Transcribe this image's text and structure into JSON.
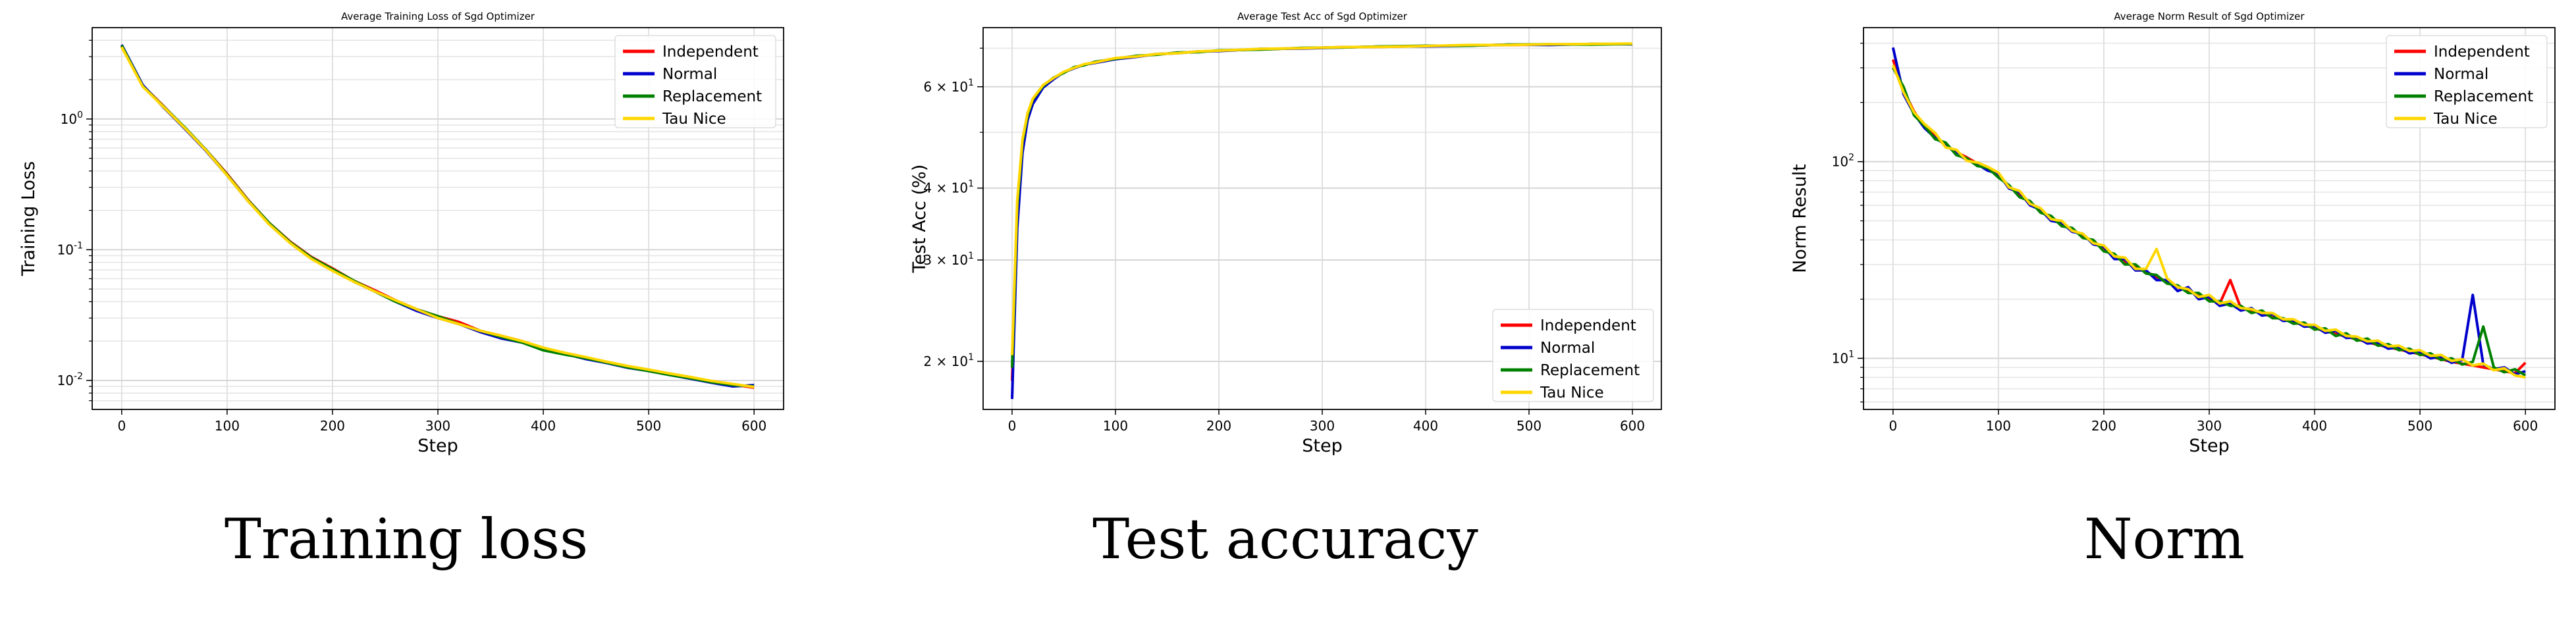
{
  "chart_data": [
    {
      "type": "line",
      "title": "Average Training Loss of Sgd Optimizer",
      "xlabel": "Step",
      "ylabel": "Training Loss",
      "yscale": "log",
      "xlim": [
        -28,
        628
      ],
      "ylim": [
        0.006,
        5.0
      ],
      "x_ticks": [
        0,
        100,
        200,
        300,
        400,
        500,
        600
      ],
      "y_ticks": [
        {
          "value": 1,
          "label": "10^0"
        },
        {
          "value": 0.1,
          "label": "10^-1"
        },
        {
          "value": 0.01,
          "label": "10^-2"
        }
      ],
      "grid": true,
      "legend_position": "top-right",
      "x": [
        0,
        20,
        40,
        60,
        80,
        100,
        120,
        140,
        160,
        180,
        200,
        220,
        240,
        260,
        280,
        300,
        320,
        340,
        360,
        380,
        400,
        420,
        440,
        460,
        480,
        500,
        520,
        540,
        560,
        580,
        600
      ],
      "series": [
        {
          "name": "Independent",
          "color": "#ff0000",
          "values": [
            3.6,
            1.8,
            1.25,
            0.85,
            0.58,
            0.38,
            0.24,
            0.16,
            0.115,
            0.088,
            0.072,
            0.058,
            0.049,
            0.041,
            0.035,
            0.031,
            0.028,
            0.024,
            0.022,
            0.02,
            0.0175,
            0.0162,
            0.015,
            0.0138,
            0.0128,
            0.012,
            0.0112,
            0.0105,
            0.0098,
            0.0093,
            0.0088
          ]
        },
        {
          "name": "Normal",
          "color": "#0000cc",
          "values": [
            3.7,
            1.82,
            1.22,
            0.84,
            0.57,
            0.37,
            0.235,
            0.158,
            0.113,
            0.087,
            0.07,
            0.057,
            0.048,
            0.04,
            0.034,
            0.03,
            0.027,
            0.0235,
            0.021,
            0.0195,
            0.0172,
            0.016,
            0.0146,
            0.0136,
            0.0125,
            0.0118,
            0.011,
            0.0103,
            0.0096,
            0.009,
            0.0092
          ]
        },
        {
          "name": "Replacement",
          "color": "#008000",
          "values": [
            3.65,
            1.78,
            1.24,
            0.86,
            0.58,
            0.375,
            0.238,
            0.16,
            0.114,
            0.087,
            0.071,
            0.058,
            0.048,
            0.04,
            0.035,
            0.031,
            0.027,
            0.024,
            0.0215,
            0.0195,
            0.017,
            0.0158,
            0.0148,
            0.0137,
            0.0126,
            0.0118,
            0.011,
            0.0104,
            0.0097,
            0.0092,
            0.009
          ]
        },
        {
          "name": "Tau Nice",
          "color": "#ffd700",
          "values": [
            3.55,
            1.77,
            1.23,
            0.85,
            0.575,
            0.37,
            0.235,
            0.156,
            0.112,
            0.085,
            0.069,
            0.057,
            0.048,
            0.041,
            0.035,
            0.03,
            0.027,
            0.024,
            0.022,
            0.02,
            0.0178,
            0.0163,
            0.0151,
            0.0139,
            0.0129,
            0.0121,
            0.0113,
            0.0106,
            0.0099,
            0.0094,
            0.0089
          ]
        }
      ]
    },
    {
      "type": "line",
      "title": "Average Test Acc of Sgd Optimizer",
      "xlabel": "Step",
      "ylabel": "Test Acc (%)",
      "yscale": "log",
      "xlim": [
        -28,
        628
      ],
      "ylim": [
        16.5,
        76
      ],
      "x_ticks": [
        0,
        100,
        200,
        300,
        400,
        500,
        600
      ],
      "y_ticks": [
        {
          "value": 20,
          "label": "2 × 10^1"
        },
        {
          "value": 30,
          "label": "3 × 10^1"
        },
        {
          "value": 40,
          "label": "4 × 10^1"
        },
        {
          "value": 60,
          "label": "6 × 10^1"
        }
      ],
      "grid": true,
      "legend_position": "bottom-right",
      "x": [
        0,
        5,
        10,
        15,
        20,
        30,
        40,
        50,
        60,
        70,
        80,
        100,
        120,
        140,
        160,
        180,
        200,
        240,
        280,
        320,
        360,
        400,
        440,
        480,
        520,
        560,
        600
      ],
      "series": [
        {
          "name": "Independent",
          "color": "#ff0000",
          "values": [
            18.5,
            36,
            47,
            53,
            56.5,
            60,
            62,
            63.5,
            64.8,
            65.5,
            66.2,
            67.2,
            67.8,
            68.3,
            68.7,
            69,
            69.3,
            69.7,
            70,
            70.3,
            70.4,
            70.6,
            70.8,
            70.9,
            71,
            71.1,
            71.2
          ]
        },
        {
          "name": "Normal",
          "color": "#0000cc",
          "values": [
            17.2,
            34,
            46,
            52.5,
            56,
            59.8,
            61.8,
            63.6,
            64.6,
            65.6,
            66.0,
            67.0,
            67.6,
            68.4,
            68.6,
            69.1,
            69.2,
            69.8,
            69.9,
            70.2,
            70.5,
            70.5,
            70.7,
            71.0,
            70.9,
            71.2,
            71.1
          ]
        },
        {
          "name": "Replacement",
          "color": "#008000",
          "values": [
            19.5,
            37,
            48,
            53.5,
            57,
            60.2,
            62.2,
            63.4,
            64.9,
            65.4,
            66.3,
            67.1,
            67.9,
            68.2,
            68.8,
            68.9,
            69.4,
            69.6,
            70.1,
            70.2,
            70.5,
            70.7,
            70.7,
            71.0,
            71.1,
            71.0,
            71.2
          ]
        },
        {
          "name": "Tau Nice",
          "color": "#ffd700",
          "values": [
            20.5,
            38,
            48.5,
            54,
            57.2,
            60.4,
            62.1,
            63.7,
            64.7,
            65.7,
            66.1,
            67.3,
            67.7,
            68.4,
            68.6,
            69.1,
            69.3,
            69.8,
            70.0,
            70.3,
            70.4,
            70.6,
            70.9,
            70.9,
            71.1,
            71.2,
            71.3
          ]
        }
      ]
    },
    {
      "type": "line",
      "title": "Average Norm Result of Sgd Optimizer",
      "xlabel": "Step",
      "ylabel": "Norm Result",
      "yscale": "log",
      "xlim": [
        -28,
        628
      ],
      "ylim": [
        5.5,
        480
      ],
      "x_ticks": [
        0,
        100,
        200,
        300,
        400,
        500,
        600
      ],
      "y_ticks": [
        {
          "value": 100,
          "label": "10^2"
        },
        {
          "value": 10,
          "label": "10^1"
        }
      ],
      "grid": true,
      "legend_position": "top-right",
      "x": [
        0,
        10,
        20,
        30,
        40,
        50,
        60,
        70,
        80,
        90,
        100,
        110,
        120,
        130,
        140,
        150,
        160,
        170,
        180,
        190,
        200,
        210,
        220,
        230,
        240,
        250,
        260,
        270,
        280,
        290,
        300,
        310,
        320,
        330,
        340,
        350,
        360,
        370,
        380,
        390,
        400,
        410,
        420,
        430,
        440,
        450,
        460,
        470,
        480,
        490,
        500,
        510,
        520,
        530,
        540,
        550,
        560,
        570,
        580,
        590,
        600
      ],
      "series": [
        {
          "name": "Independent",
          "color": "#ff0000",
          "values": [
            330,
            230,
            180,
            150,
            135,
            120,
            112,
            105,
            98,
            92,
            85,
            75,
            68,
            62,
            56,
            52,
            48,
            45,
            42,
            39,
            36,
            33,
            31,
            29,
            27.5,
            26,
            24.5,
            23,
            22,
            21,
            20,
            19,
            25,
            18,
            17.5,
            17,
            16.2,
            15.8,
            15.2,
            14.8,
            14.2,
            13.8,
            13.3,
            12.9,
            12.5,
            12.1,
            11.7,
            11.4,
            11.1,
            10.8,
            10.5,
            10.2,
            9.9,
            9.6,
            9.4,
            9.2,
            9.0,
            8.8,
            8.6,
            8.4,
            9.5
          ]
        },
        {
          "name": "Normal",
          "color": "#0000cc",
          "values": [
            380,
            220,
            175,
            148,
            132,
            122,
            110,
            102,
            97,
            90,
            87,
            73,
            70,
            60,
            57,
            50,
            49,
            44,
            43,
            38,
            37,
            32,
            32,
            28,
            28,
            25,
            25,
            22,
            23,
            20,
            20.5,
            18.5,
            19,
            17.5,
            18,
            16.5,
            16.8,
            15.5,
            15.6,
            14.5,
            14.6,
            13.5,
            13.8,
            12.7,
            12.8,
            11.9,
            12.0,
            11.2,
            11.4,
            10.6,
            10.8,
            10.0,
            10.2,
            9.5,
            9.8,
            21,
            9.3,
            8.8,
            9.0,
            8.3,
            8.6
          ]
        },
        {
          "name": "Replacement",
          "color": "#008000",
          "values": [
            300,
            240,
            172,
            152,
            130,
            125,
            108,
            104,
            95,
            93,
            83,
            76,
            66,
            63,
            55,
            53,
            47,
            46,
            41,
            40,
            35,
            34,
            30,
            30,
            27,
            26.5,
            24,
            23.5,
            21.5,
            21.5,
            19.5,
            19.5,
            18.5,
            18.5,
            17,
            17.5,
            16,
            16,
            15,
            15.2,
            14,
            14.2,
            13,
            13.4,
            12.3,
            12.6,
            11.6,
            11.8,
            11,
            11.2,
            10.4,
            10.6,
            9.8,
            10,
            9.3,
            9.6,
            14.5,
            9.0,
            8.5,
            8.8,
            8.2
          ]
        },
        {
          "name": "Tau Nice",
          "color": "#ffd700",
          "values": [
            310,
            225,
            178,
            155,
            140,
            118,
            115,
            101,
            99,
            94,
            88,
            74,
            71,
            61,
            58,
            51,
            50,
            44.5,
            43,
            38.5,
            37.5,
            33,
            32.5,
            28.5,
            28.5,
            36,
            25.5,
            23,
            22.5,
            20.5,
            21,
            19,
            19.5,
            18,
            17.8,
            17,
            17,
            15.8,
            15.8,
            14.8,
            14.8,
            13.8,
            14,
            13,
            12.9,
            12.2,
            12.3,
            11.5,
            11.6,
            10.9,
            11,
            10.3,
            10.4,
            9.7,
            9.9,
            9.2,
            9.4,
            8.7,
            8.9,
            8.2,
            8.0
          ]
        }
      ]
    }
  ],
  "captions": [
    "Training loss",
    "Test accuracy",
    "Norm"
  ]
}
